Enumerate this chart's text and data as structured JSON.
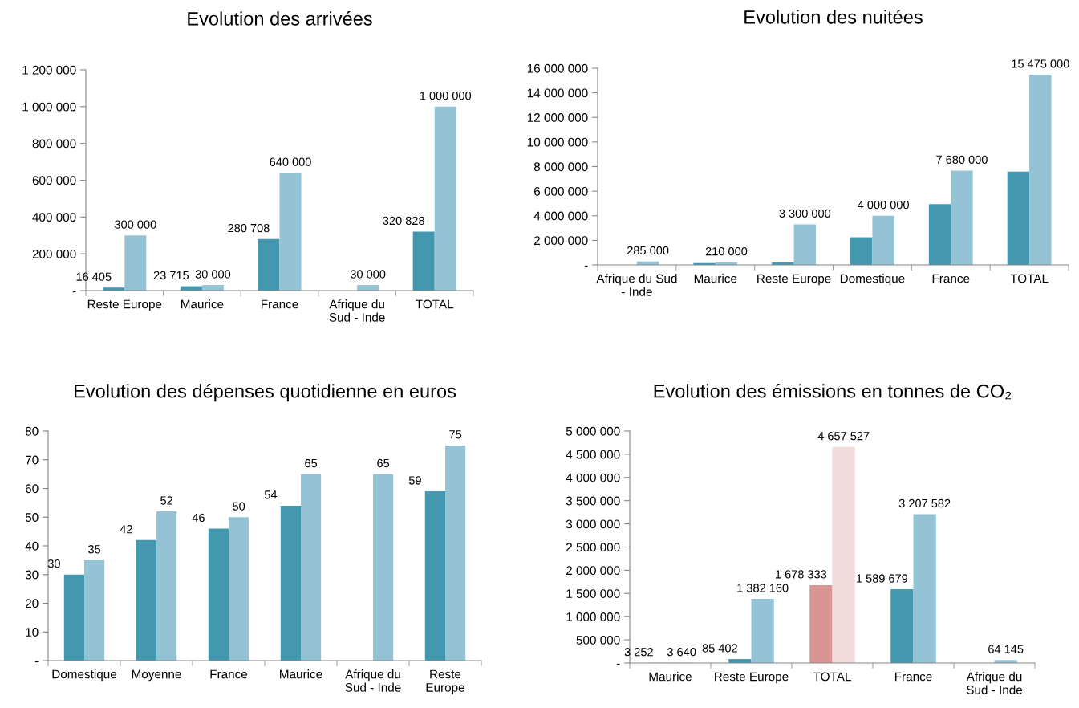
{
  "chart_data": [
    {
      "type": "bar",
      "title": "Evolution des arrivées",
      "categories": [
        "Reste Europe",
        "Maurice",
        "France",
        "Afrique du\nSud - Inde",
        "TOTAL"
      ],
      "series": [
        {
          "color": "#4398b0",
          "values": [
            16405,
            23715,
            280708,
            null,
            320828
          ],
          "value_labels": [
            "16 405",
            "23 715",
            "280 708",
            null,
            "320 828"
          ]
        },
        {
          "color": "#93c3d5",
          "values": [
            300000,
            30000,
            640000,
            30000,
            1000000
          ],
          "value_labels": [
            "300 000",
            "30 000",
            "640 000",
            "30 000",
            "1 000 000"
          ]
        }
      ],
      "ylim": [
        0,
        1200000
      ],
      "yticks": [
        {
          "value": 0,
          "label": "-"
        },
        {
          "value": 200000,
          "label": "200 000"
        },
        {
          "value": 400000,
          "label": "400 000"
        },
        {
          "value": 600000,
          "label": "600 000"
        },
        {
          "value": 800000,
          "label": "800 000"
        },
        {
          "value": 1000000,
          "label": "1 000 000"
        },
        {
          "value": 1200000,
          "label": "1 200 000"
        }
      ],
      "grid": false,
      "legend": false
    },
    {
      "type": "bar",
      "title": "Evolution des nuitées",
      "categories": [
        "Afrique du Sud\n- Inde",
        "Maurice",
        "Reste Europe",
        "Domestique",
        "France",
        "TOTAL"
      ],
      "series": [
        {
          "color": "#4398b0",
          "values": [
            null,
            150000,
            200000,
            2250000,
            4950000,
            7600000
          ],
          "value_labels": [
            null,
            null,
            null,
            null,
            null,
            null
          ]
        },
        {
          "color": "#93c3d5",
          "values": [
            285000,
            210000,
            3300000,
            4000000,
            7680000,
            15475000
          ],
          "value_labels": [
            "285 000",
            "210 000",
            "3 300 000",
            "4 000 000",
            "7 680 000",
            "15 475 000"
          ]
        }
      ],
      "ylim": [
        0,
        16000000
      ],
      "yticks": [
        {
          "value": 0,
          "label": "-"
        },
        {
          "value": 2000000,
          "label": "2 000 000"
        },
        {
          "value": 4000000,
          "label": "4 000 000"
        },
        {
          "value": 6000000,
          "label": "6 000 000"
        },
        {
          "value": 8000000,
          "label": "8 000 000"
        },
        {
          "value": 10000000,
          "label": "10 000 000"
        },
        {
          "value": 12000000,
          "label": "12 000 000"
        },
        {
          "value": 14000000,
          "label": "14 000 000"
        },
        {
          "value": 16000000,
          "label": "16 000 000"
        }
      ],
      "grid": false,
      "legend": false
    },
    {
      "type": "bar",
      "title": "Evolution des dépenses quotidienne en euros",
      "categories": [
        "Domestique",
        "Moyenne",
        "France",
        "Maurice",
        "Afrique du\nSud - Inde",
        "Reste\nEurope"
      ],
      "series": [
        {
          "color": "#4398b0",
          "values": [
            30,
            42,
            46,
            54,
            null,
            59
          ],
          "value_labels": [
            "30",
            "42",
            "46",
            "54",
            null,
            "59"
          ]
        },
        {
          "color": "#93c3d5",
          "values": [
            35,
            52,
            50,
            65,
            65,
            75
          ],
          "value_labels": [
            "35",
            "52",
            "50",
            "65",
            "65",
            "75"
          ]
        }
      ],
      "ylim": [
        0,
        80
      ],
      "yticks": [
        {
          "value": 0,
          "label": "-"
        },
        10,
        20,
        30,
        40,
        50,
        60,
        70,
        80
      ],
      "grid": false,
      "legend": false
    },
    {
      "type": "bar",
      "title": "Evolution des émissions en tonnes de CO₂",
      "categories": [
        "Maurice",
        "Reste Europe",
        "TOTAL",
        "France",
        "Afrique du\nSud - Inde"
      ],
      "series": [
        {
          "colors": [
            "#4398b0",
            "#4398b0",
            "#d99594",
            "#4398b0",
            "#4398b0"
          ],
          "values": [
            3252,
            85402,
            1678333,
            1589679,
            null
          ],
          "value_labels": [
            "3 252",
            "85 402",
            "1 678 333",
            "1 589 679",
            null
          ]
        },
        {
          "colors": [
            "#93c3d5",
            "#93c3d5",
            "#f2dcdb",
            "#93c3d5",
            "#93c3d5"
          ],
          "values": [
            3640,
            1382160,
            4657527,
            3207582,
            64145
          ],
          "value_labels": [
            "3 640",
            "1 382 160",
            "4 657 527",
            "3 207 582",
            "64 145"
          ]
        }
      ],
      "ylim": [
        0,
        5000000
      ],
      "yticks": [
        {
          "value": 0,
          "label": "-"
        },
        {
          "value": 500000,
          "label": "500 000"
        },
        {
          "value": 1000000,
          "label": "1 000 000"
        },
        {
          "value": 1500000,
          "label": "1 500 000"
        },
        {
          "value": 2000000,
          "label": "2 000 000"
        },
        {
          "value": 2500000,
          "label": "2 500 000"
        },
        {
          "value": 3000000,
          "label": "3 000 000"
        },
        {
          "value": 3500000,
          "label": "3 500 000"
        },
        {
          "value": 4000000,
          "label": "4 000 000"
        },
        {
          "value": 4500000,
          "label": "4 500 000"
        },
        {
          "value": 5000000,
          "label": "5 000 000"
        }
      ],
      "grid": false,
      "legend": false
    }
  ]
}
